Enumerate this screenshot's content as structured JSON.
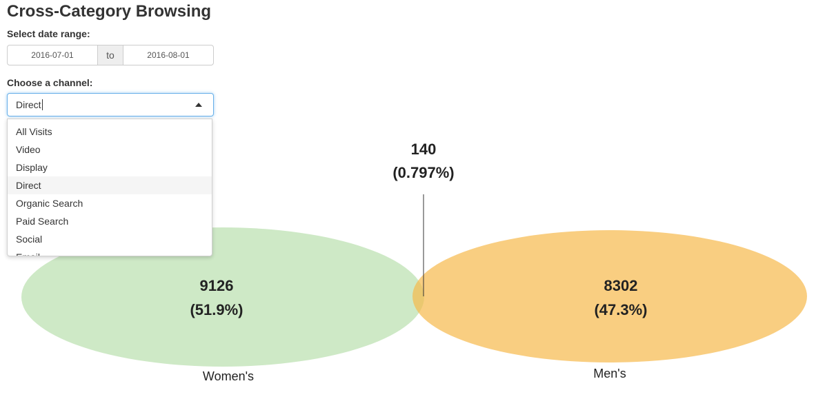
{
  "page": {
    "title": "Cross-Category Browsing"
  },
  "date_range": {
    "label": "Select date range:",
    "start": "2016-07-01",
    "separator": "to",
    "end": "2016-08-01"
  },
  "channel": {
    "label": "Choose a channel:",
    "value": "Direct",
    "options": [
      "All Visits",
      "Video",
      "Display",
      "Direct",
      "Organic Search",
      "Paid Search",
      "Social",
      "Email"
    ],
    "active_option": "Direct"
  },
  "venn": {
    "left": {
      "name": "Women's",
      "count": "9126",
      "percent": "(51.9%)",
      "color": "#b9e0ae"
    },
    "right": {
      "name": "Men's",
      "count": "8302",
      "percent": "(47.3%)",
      "color": "#f6b94c"
    },
    "overlap": {
      "count": "140",
      "percent": "(0.797%)"
    }
  }
}
